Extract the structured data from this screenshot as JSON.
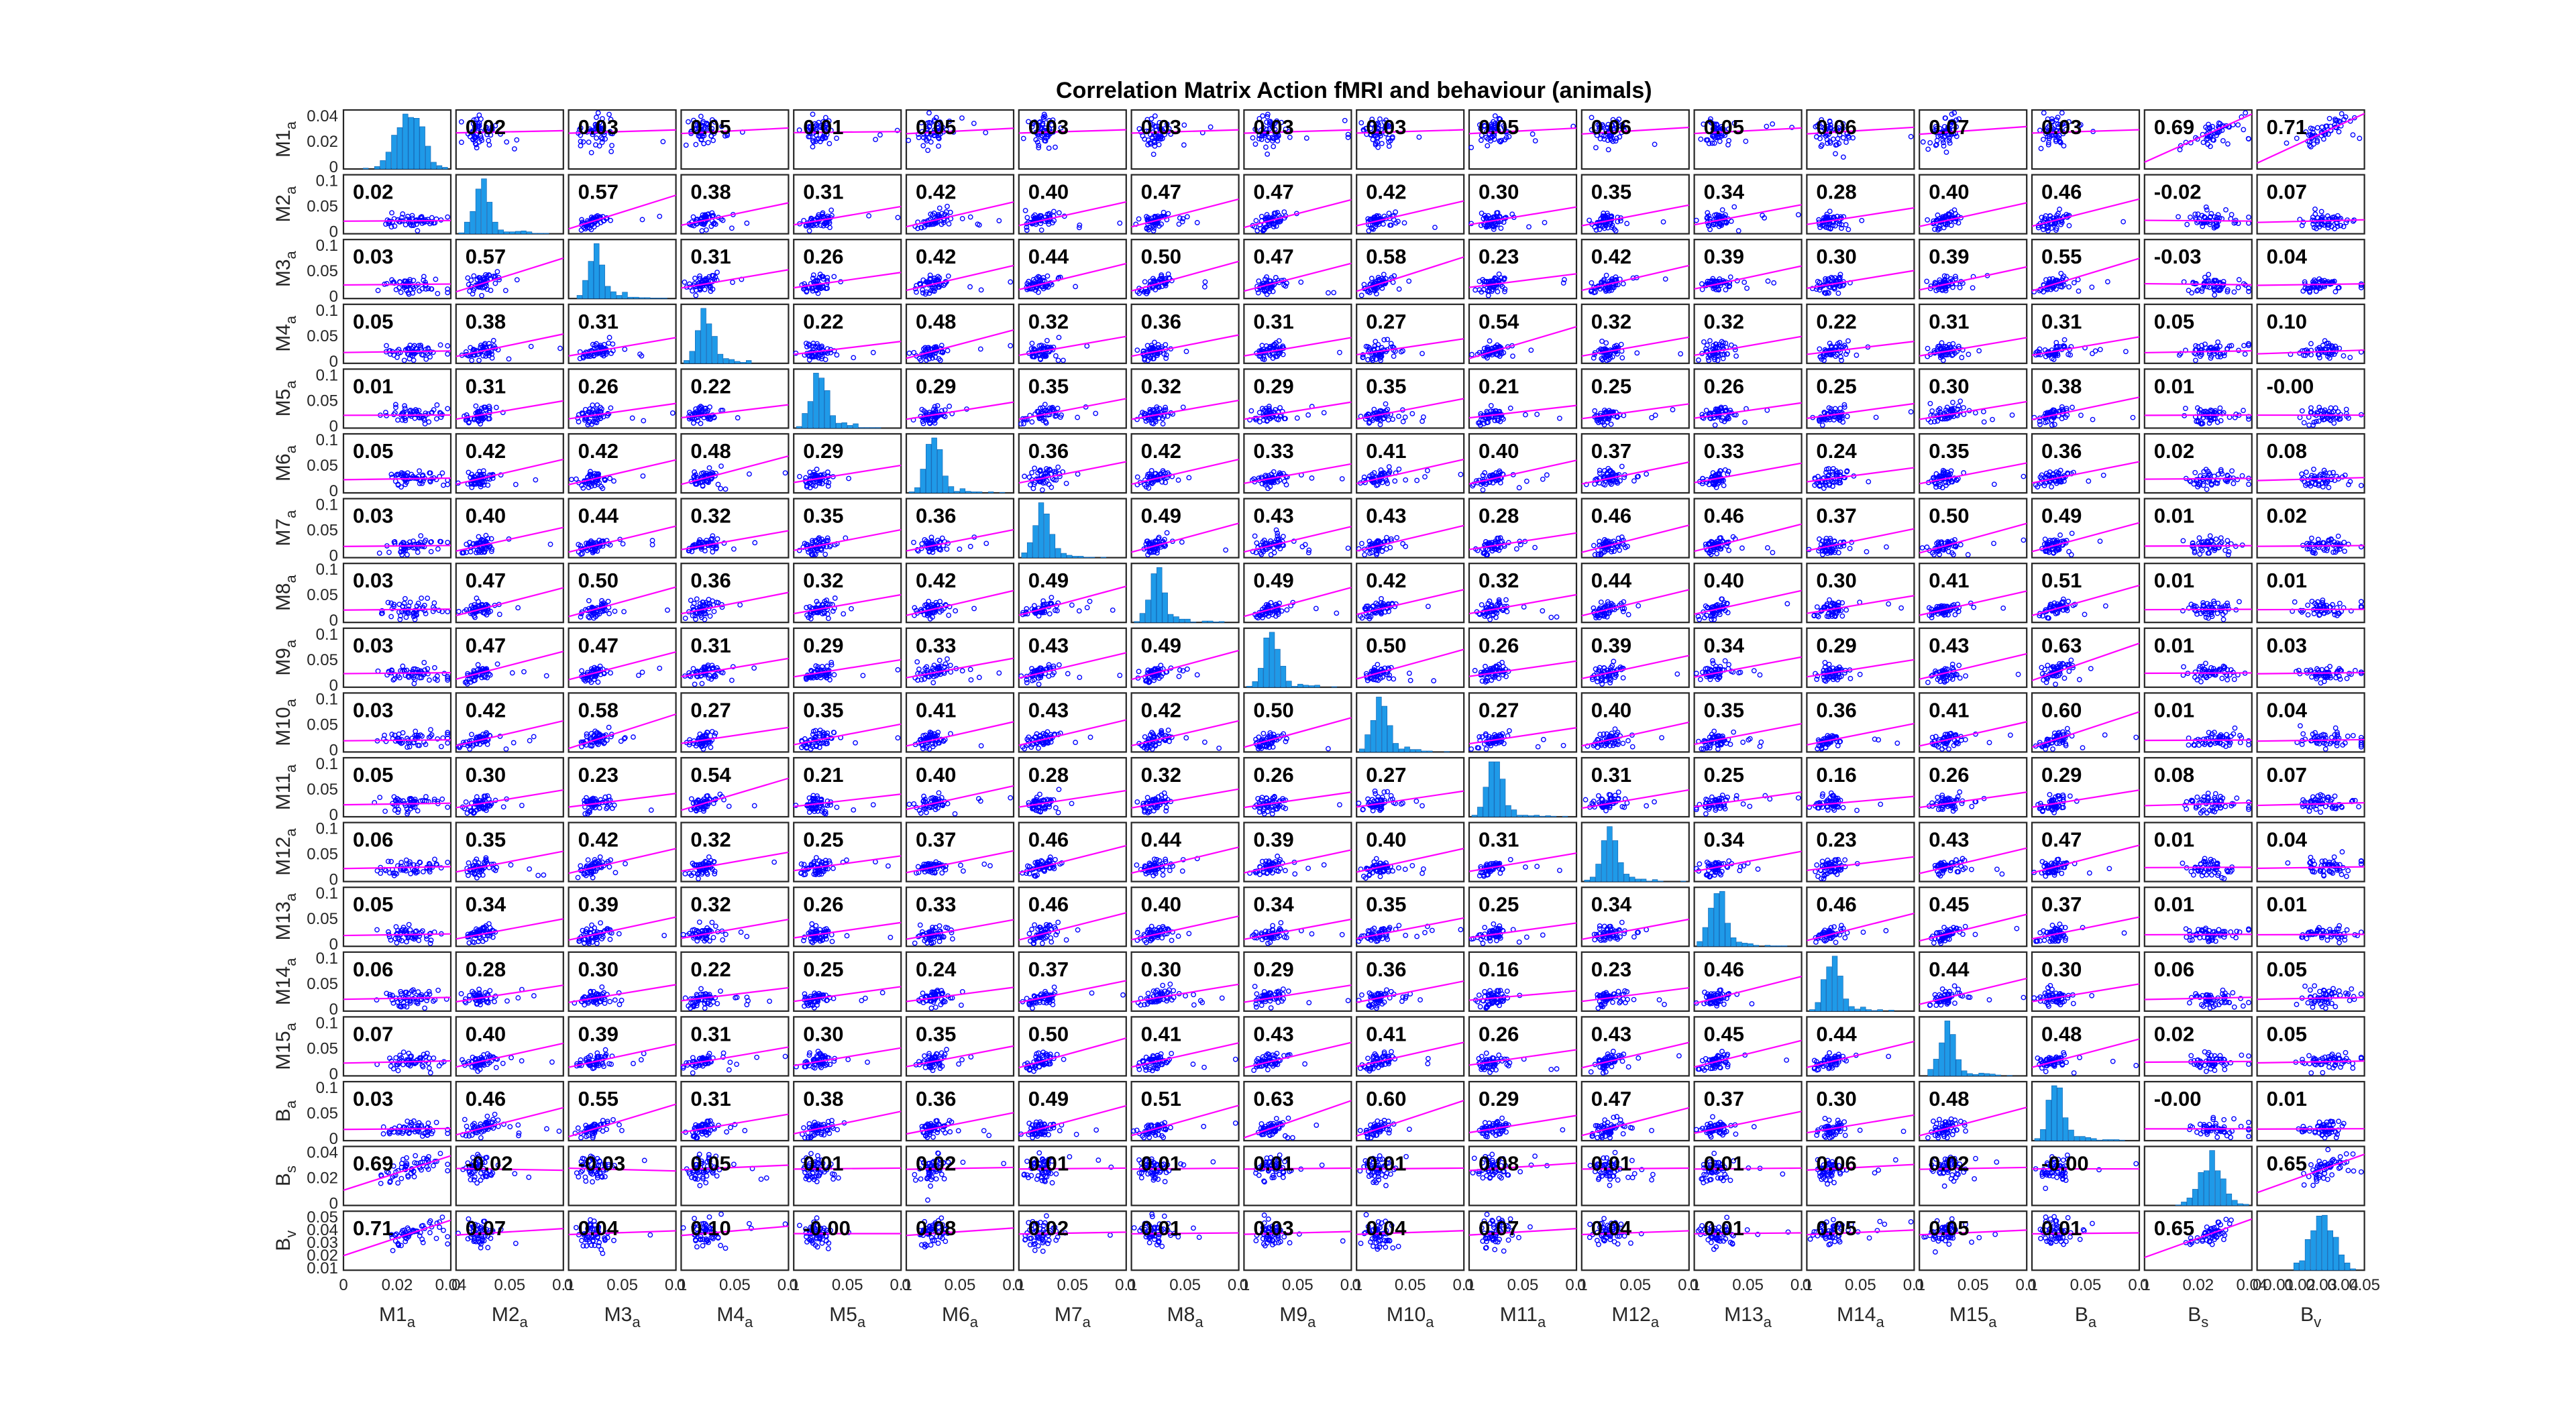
{
  "chart_data": {
    "type": "scatter",
    "title": "Correlation Matrix Action fMRI and behaviour (animals)",
    "variables": [
      {
        "base": "M1",
        "sub": "a"
      },
      {
        "base": "M2",
        "sub": "a"
      },
      {
        "base": "M3",
        "sub": "a"
      },
      {
        "base": "M4",
        "sub": "a"
      },
      {
        "base": "M5",
        "sub": "a"
      },
      {
        "base": "M6",
        "sub": "a"
      },
      {
        "base": "M7",
        "sub": "a"
      },
      {
        "base": "M8",
        "sub": "a"
      },
      {
        "base": "M9",
        "sub": "a"
      },
      {
        "base": "M10",
        "sub": "a"
      },
      {
        "base": "M11",
        "sub": "a"
      },
      {
        "base": "M12",
        "sub": "a"
      },
      {
        "base": "M13",
        "sub": "a"
      },
      {
        "base": "M14",
        "sub": "a"
      },
      {
        "base": "M15",
        "sub": "a"
      },
      {
        "base": "B",
        "sub": "a"
      },
      {
        "base": "B",
        "sub": "s"
      },
      {
        "base": "B",
        "sub": "v"
      }
    ],
    "correlations": [
      [
        null,
        "0.02",
        "0.03",
        "0.05",
        "0.01",
        "0.05",
        "0.03",
        "0.03",
        "0.03",
        "0.03",
        "0.05",
        "0.06",
        "0.05",
        "0.06",
        "0.07",
        "0.03",
        "0.69",
        "0.71"
      ],
      [
        "0.02",
        null,
        "0.57",
        "0.38",
        "0.31",
        "0.42",
        "0.40",
        "0.47",
        "0.47",
        "0.42",
        "0.30",
        "0.35",
        "0.34",
        "0.28",
        "0.40",
        "0.46",
        "-0.02",
        "0.07"
      ],
      [
        "0.03",
        "0.57",
        null,
        "0.31",
        "0.26",
        "0.42",
        "0.44",
        "0.50",
        "0.47",
        "0.58",
        "0.23",
        "0.42",
        "0.39",
        "0.30",
        "0.39",
        "0.55",
        "-0.03",
        "0.04"
      ],
      [
        "0.05",
        "0.38",
        "0.31",
        null,
        "0.22",
        "0.48",
        "0.32",
        "0.36",
        "0.31",
        "0.27",
        "0.54",
        "0.32",
        "0.32",
        "0.22",
        "0.31",
        "0.31",
        "0.05",
        "0.10"
      ],
      [
        "0.01",
        "0.31",
        "0.26",
        "0.22",
        null,
        "0.29",
        "0.35",
        "0.32",
        "0.29",
        "0.35",
        "0.21",
        "0.25",
        "0.26",
        "0.25",
        "0.30",
        "0.38",
        "0.01",
        "-0.00"
      ],
      [
        "0.05",
        "0.42",
        "0.42",
        "0.48",
        "0.29",
        null,
        "0.36",
        "0.42",
        "0.33",
        "0.41",
        "0.40",
        "0.37",
        "0.33",
        "0.24",
        "0.35",
        "0.36",
        "0.02",
        "0.08"
      ],
      [
        "0.03",
        "0.40",
        "0.44",
        "0.32",
        "0.35",
        "0.36",
        null,
        "0.49",
        "0.43",
        "0.43",
        "0.28",
        "0.46",
        "0.46",
        "0.37",
        "0.50",
        "0.49",
        "0.01",
        "0.02"
      ],
      [
        "0.03",
        "0.47",
        "0.50",
        "0.36",
        "0.32",
        "0.42",
        "0.49",
        null,
        "0.49",
        "0.42",
        "0.32",
        "0.44",
        "0.40",
        "0.30",
        "0.41",
        "0.51",
        "0.01",
        "0.01"
      ],
      [
        "0.03",
        "0.47",
        "0.47",
        "0.31",
        "0.29",
        "0.33",
        "0.43",
        "0.49",
        null,
        "0.50",
        "0.26",
        "0.39",
        "0.34",
        "0.29",
        "0.43",
        "0.63",
        "0.01",
        "0.03"
      ],
      [
        "0.03",
        "0.42",
        "0.58",
        "0.27",
        "0.35",
        "0.41",
        "0.43",
        "0.42",
        "0.50",
        null,
        "0.27",
        "0.40",
        "0.35",
        "0.36",
        "0.41",
        "0.60",
        "0.01",
        "0.04"
      ],
      [
        "0.05",
        "0.30",
        "0.23",
        "0.54",
        "0.21",
        "0.40",
        "0.28",
        "0.32",
        "0.26",
        "0.27",
        null,
        "0.31",
        "0.25",
        "0.16",
        "0.26",
        "0.29",
        "0.08",
        "0.07"
      ],
      [
        "0.06",
        "0.35",
        "0.42",
        "0.32",
        "0.25",
        "0.37",
        "0.46",
        "0.44",
        "0.39",
        "0.40",
        "0.31",
        null,
        "0.34",
        "0.23",
        "0.43",
        "0.47",
        "0.01",
        "0.04"
      ],
      [
        "0.05",
        "0.34",
        "0.39",
        "0.32",
        "0.26",
        "0.33",
        "0.46",
        "0.40",
        "0.34",
        "0.35",
        "0.25",
        "0.34",
        null,
        "0.46",
        "0.45",
        "0.37",
        "0.01",
        "0.01"
      ],
      [
        "0.06",
        "0.28",
        "0.30",
        "0.22",
        "0.25",
        "0.24",
        "0.37",
        "0.30",
        "0.29",
        "0.36",
        "0.16",
        "0.23",
        "0.46",
        null,
        "0.44",
        "0.30",
        "0.06",
        "0.05"
      ],
      [
        "0.07",
        "0.40",
        "0.39",
        "0.31",
        "0.30",
        "0.35",
        "0.50",
        "0.41",
        "0.43",
        "0.41",
        "0.26",
        "0.43",
        "0.45",
        "0.44",
        null,
        "0.48",
        "0.02",
        "0.05"
      ],
      [
        "0.03",
        "0.46",
        "0.55",
        "0.31",
        "0.38",
        "0.36",
        "0.49",
        "0.51",
        "0.63",
        "0.60",
        "0.29",
        "0.47",
        "0.37",
        "0.30",
        "0.48",
        null,
        "-0.00",
        "0.01"
      ],
      [
        "0.69",
        "-0.02",
        "-0.03",
        "0.05",
        "0.01",
        "0.02",
        "0.01",
        "0.01",
        "0.01",
        "0.01",
        "0.08",
        "0.01",
        "0.01",
        "0.06",
        "0.02",
        "-0.00",
        null,
        "0.65"
      ],
      [
        "0.71",
        "0.07",
        "0.04",
        "0.10",
        "-0.00",
        "0.08",
        "0.02",
        "0.01",
        "0.03",
        "0.04",
        "0.07",
        "0.04",
        "0.01",
        "0.05",
        "0.05",
        "0.01",
        "0.65",
        null
      ]
    ],
    "axis_ranges": [
      [
        0,
        0.05
      ],
      [
        0,
        0.1
      ],
      [
        0,
        0.1
      ],
      [
        0,
        0.1
      ],
      [
        0,
        0.1
      ],
      [
        0,
        0.1
      ],
      [
        0,
        0.1
      ],
      [
        0,
        0.1
      ],
      [
        0,
        0.1
      ],
      [
        0,
        0.1
      ],
      [
        0,
        0.1
      ],
      [
        0,
        0.1
      ],
      [
        0,
        0.1
      ],
      [
        0,
        0.1
      ],
      [
        0,
        0.1
      ],
      [
        0,
        0.1
      ],
      [
        0,
        0.04
      ],
      [
        0,
        0.05
      ]
    ],
    "x_ticks": [
      [
        "0",
        "0.02",
        "0.04"
      ],
      [
        "0",
        "0.05",
        "0.1"
      ],
      [
        "0",
        "0.05",
        "0.1"
      ],
      [
        "0",
        "0.05",
        "0.1"
      ],
      [
        "0",
        "0.05",
        "0.1"
      ],
      [
        "0",
        "0.05",
        "0.1"
      ],
      [
        "0",
        "0.05",
        "0.1"
      ],
      [
        "0",
        "0.05",
        "0.1"
      ],
      [
        "0",
        "0.05",
        "0.1"
      ],
      [
        "0",
        "0.05",
        "0.1"
      ],
      [
        "0",
        "0.05",
        "0.1"
      ],
      [
        "0",
        "0.05",
        "0.1"
      ],
      [
        "0",
        "0.05",
        "0.1"
      ],
      [
        "0",
        "0.05",
        "0.1"
      ],
      [
        "0",
        "0.05",
        "0.1"
      ],
      [
        "0",
        "0.05",
        "0.1"
      ],
      [
        "0",
        "0.02",
        "0.04"
      ],
      [
        "0",
        "0.01",
        "0.02",
        "0.03",
        "0.04",
        "0.05"
      ]
    ],
    "y_ticks": [
      [
        "0",
        "0.02",
        "0.04"
      ],
      [
        "0",
        "0.05",
        "0.1"
      ],
      [
        "0",
        "0.05",
        "0.1"
      ],
      [
        "0",
        "0.05",
        "0.1"
      ],
      [
        "0",
        "0.05",
        "0.1"
      ],
      [
        "0",
        "0.05",
        "0.1"
      ],
      [
        "0",
        "0.05",
        "0.1"
      ],
      [
        "0",
        "0.05",
        "0.1"
      ],
      [
        "0",
        "0.05",
        "0.1"
      ],
      [
        "0",
        "0.05",
        "0.1"
      ],
      [
        "0",
        "0.05",
        "0.1"
      ],
      [
        "0",
        "0.05",
        "0.1"
      ],
      [
        "0",
        "0.05",
        "0.1"
      ],
      [
        "0",
        "0.05",
        "0.1"
      ],
      [
        "0",
        "0.05",
        "0.1"
      ],
      [
        "0",
        "0.05",
        "0.1"
      ],
      [
        "0",
        "0.02",
        "0.04"
      ],
      [
        "0.01",
        "0.02",
        "0.03",
        "0.04",
        "0.05"
      ]
    ],
    "grid": false,
    "legend": "none",
    "colors": {
      "scatter": "#0000ff",
      "fit_line": "#ff00ff",
      "histogram": "#1f9ae8",
      "histogram_edge": "#0b5fb0",
      "frame": "#262626",
      "correlation_text": "#000000"
    }
  }
}
